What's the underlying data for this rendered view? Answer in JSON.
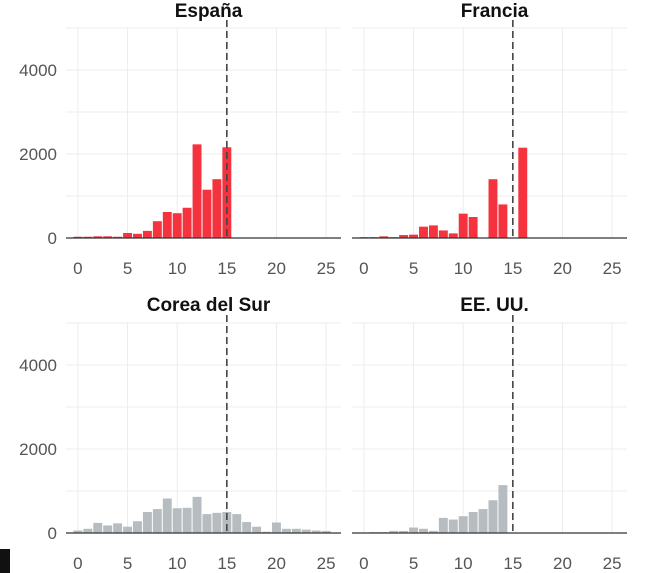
{
  "colors": {
    "highlight": "#f5333f",
    "muted": "#b6bcc0",
    "grid": "#ececec",
    "axis": "#333333",
    "reference_line": "#444444"
  },
  "chart_data": {
    "type": "bar",
    "layout": "facet-2x2",
    "shared_y": true,
    "ylim": [
      0,
      5000
    ],
    "xlim": [
      -1.2,
      26.5
    ],
    "y_ticks": [
      0,
      2000,
      4000
    ],
    "x_ticks": [
      0,
      5,
      10,
      15,
      20,
      25
    ],
    "reference_x": 15,
    "grid": true,
    "panels": [
      {
        "title": "España",
        "color_key": "highlight",
        "x": [
          0,
          1,
          2,
          3,
          4,
          5,
          6,
          7,
          8,
          9,
          10,
          11,
          12,
          13,
          14,
          15
        ],
        "values": [
          30,
          30,
          40,
          40,
          30,
          120,
          100,
          170,
          400,
          620,
          590,
          720,
          2230,
          1150,
          1400,
          2160
        ]
      },
      {
        "title": "Francia",
        "color_key": "highlight",
        "x": [
          0,
          1,
          2,
          3,
          4,
          5,
          6,
          7,
          8,
          9,
          10,
          11,
          12,
          13,
          14,
          15,
          16
        ],
        "values": [
          20,
          20,
          40,
          20,
          70,
          80,
          270,
          300,
          180,
          110,
          580,
          500,
          0,
          1400,
          800,
          0,
          2150
        ]
      },
      {
        "title": "Corea del Sur",
        "color_key": "muted",
        "x": [
          0,
          1,
          2,
          3,
          4,
          5,
          6,
          7,
          8,
          9,
          10,
          11,
          12,
          13,
          14,
          15,
          16,
          17,
          18,
          19,
          20,
          21,
          22,
          23,
          24,
          25
        ],
        "values": [
          60,
          100,
          240,
          180,
          230,
          150,
          280,
          500,
          570,
          820,
          590,
          600,
          860,
          450,
          480,
          500,
          450,
          260,
          150,
          30,
          250,
          100,
          100,
          80,
          60,
          50
        ]
      },
      {
        "title": "EE. UU.",
        "color_key": "muted",
        "x": [
          0,
          1,
          2,
          3,
          4,
          5,
          6,
          7,
          8,
          9,
          10,
          11,
          12,
          13,
          14
        ],
        "values": [
          10,
          20,
          20,
          50,
          50,
          130,
          100,
          50,
          360,
          320,
          400,
          500,
          570,
          780,
          1140
        ]
      }
    ]
  }
}
